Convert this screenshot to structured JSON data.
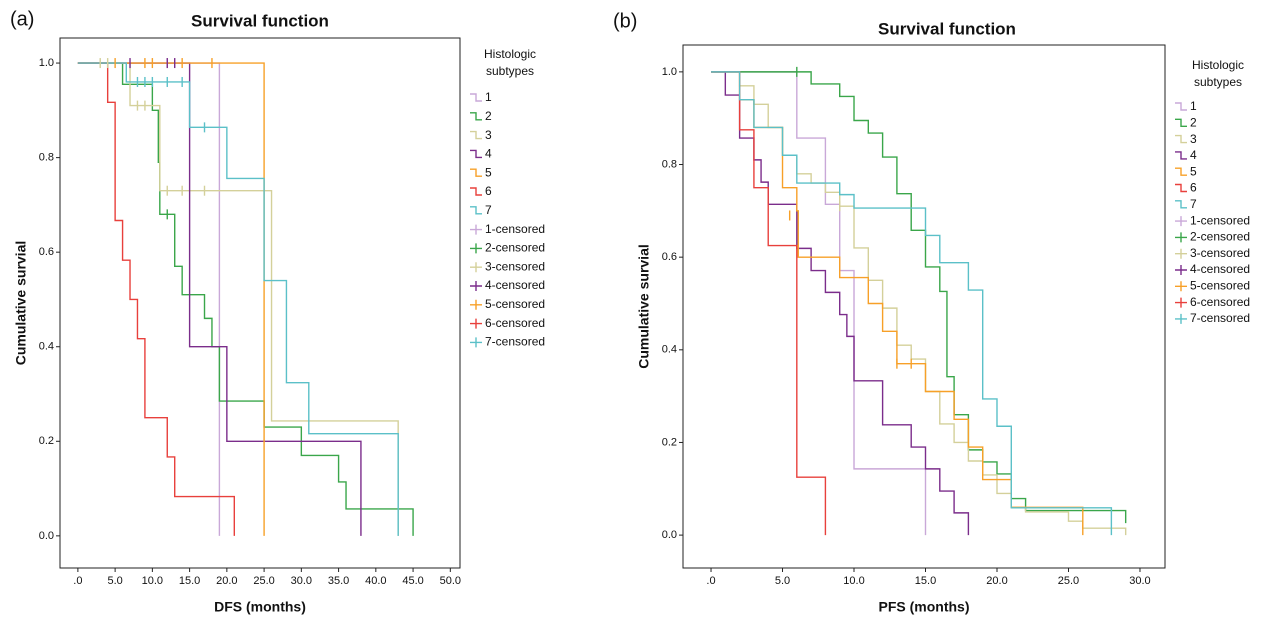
{
  "chart_data": [
    {
      "type": "step",
      "panel_label": "(a)",
      "title": "Survival function",
      "xlabel": "DFS (months)",
      "ylabel": "Cumulative survial",
      "legend_title": [
        "Histologic",
        "subtypes"
      ],
      "xlim": [
        -2.4,
        51.3
      ],
      "ylim": [
        -0.068,
        1.053
      ],
      "xticks": [
        {
          "value": 0,
          "label": ".0"
        },
        {
          "value": 5,
          "label": "5.0"
        },
        {
          "value": 10,
          "label": "10.0"
        },
        {
          "value": 15,
          "label": "15.0"
        },
        {
          "value": 20,
          "label": "20.0"
        },
        {
          "value": 25,
          "label": "25.0"
        },
        {
          "value": 30,
          "label": "30.0"
        },
        {
          "value": 35,
          "label": "35.0"
        },
        {
          "value": 40,
          "label": "40.0"
        },
        {
          "value": 45,
          "label": "45.0"
        },
        {
          "value": 50,
          "label": "50.0"
        }
      ],
      "yticks": [
        {
          "value": 0,
          "label": "0.0"
        },
        {
          "value": 0.2,
          "label": "0.2"
        },
        {
          "value": 0.4,
          "label": "0.4"
        },
        {
          "value": 0.6,
          "label": "0.6"
        },
        {
          "value": 0.8,
          "label": "0.8"
        },
        {
          "value": 1,
          "label": "1.0"
        }
      ],
      "series": [
        {
          "name": "1",
          "type": "step",
          "color": "#c9a8d8",
          "x": [
            0,
            19
          ],
          "values": [
            1,
            0
          ]
        },
        {
          "name": "2",
          "type": "step",
          "color": "#3aa64a",
          "x": [
            0,
            6,
            10,
            10.8,
            11,
            13,
            14,
            17,
            18,
            19,
            25,
            30,
            35,
            36,
            45
          ],
          "values": [
            1,
            0.955,
            0.9,
            0.79,
            0.68,
            0.57,
            0.51,
            0.46,
            0.4,
            0.285,
            0.23,
            0.17,
            0.114,
            0.057,
            0
          ]
        },
        {
          "name": "3",
          "type": "step",
          "color": "#d4d09a",
          "x": [
            0,
            7,
            11,
            26,
            43
          ],
          "values": [
            1,
            0.91,
            0.73,
            0.243,
            0
          ]
        },
        {
          "name": "4",
          "type": "step",
          "color": "#7b2d8b",
          "x": [
            0,
            15,
            20,
            38
          ],
          "values": [
            1,
            0.4,
            0.2,
            0
          ]
        },
        {
          "name": "5",
          "type": "step",
          "color": "#f7a028",
          "x": [
            0,
            25
          ],
          "values": [
            1,
            0
          ]
        },
        {
          "name": "6",
          "type": "step",
          "color": "#e8403c",
          "x": [
            0,
            4,
            5,
            6,
            7,
            8,
            9,
            12,
            13,
            21
          ],
          "values": [
            1,
            0.917,
            0.667,
            0.583,
            0.5,
            0.417,
            0.25,
            0.167,
            0.083,
            0
          ]
        },
        {
          "name": "7",
          "type": "step",
          "color": "#5bc0c8",
          "x": [
            0,
            6.5,
            15,
            20,
            25,
            28,
            31,
            43
          ],
          "values": [
            1,
            0.96,
            0.864,
            0.756,
            0.54,
            0.324,
            0.216,
            0
          ]
        },
        {
          "name": "1-censored",
          "type": "censor",
          "color": "#c9a8d8",
          "x": [
            12
          ],
          "values": [
            1
          ]
        },
        {
          "name": "2-censored",
          "type": "censor",
          "color": "#3aa64a",
          "x": [
            12
          ],
          "values": [
            0.68
          ]
        },
        {
          "name": "3-censored",
          "type": "censor",
          "color": "#d4d09a",
          "x": [
            3,
            4,
            8,
            9,
            12,
            14,
            17
          ],
          "values": [
            1,
            1,
            0.91,
            0.91,
            0.73,
            0.73,
            0.73
          ]
        },
        {
          "name": "4-censored",
          "type": "censor",
          "color": "#7b2d8b",
          "x": [
            7,
            12,
            13
          ],
          "values": [
            1,
            1,
            1
          ]
        },
        {
          "name": "5-censored",
          "type": "censor",
          "color": "#f7a028",
          "x": [
            5,
            9,
            10,
            14,
            18
          ],
          "values": [
            1,
            1,
            1,
            1,
            1
          ]
        },
        {
          "name": "6-censored",
          "type": "censor",
          "color": "#e8403c",
          "x": [],
          "values": []
        },
        {
          "name": "7-censored",
          "type": "censor",
          "color": "#5bc0c8",
          "x": [
            8,
            9,
            10,
            12,
            14,
            17
          ],
          "values": [
            0.96,
            0.96,
            0.96,
            0.96,
            0.96,
            0.864
          ]
        }
      ]
    },
    {
      "type": "step",
      "panel_label": "(b)",
      "title": "Survival function",
      "xlabel": "PFS (months)",
      "ylabel": "Cumulative survial",
      "legend_title": [
        "Histologic",
        "subtypes"
      ],
      "xlim": [
        -1.96,
        31.75
      ],
      "ylim": [
        -0.071,
        1.058
      ],
      "xticks": [
        {
          "value": 0,
          "label": ".0"
        },
        {
          "value": 5,
          "label": "5.0"
        },
        {
          "value": 10,
          "label": "10.0"
        },
        {
          "value": 15,
          "label": "15.0"
        },
        {
          "value": 20,
          "label": "20.0"
        },
        {
          "value": 25,
          "label": "25.0"
        },
        {
          "value": 30,
          "label": "30.0"
        }
      ],
      "yticks": [
        {
          "value": 0,
          "label": "0.0"
        },
        {
          "value": 0.2,
          "label": "0.2"
        },
        {
          "value": 0.4,
          "label": "0.4"
        },
        {
          "value": 0.6,
          "label": "0.6"
        },
        {
          "value": 0.8,
          "label": "0.8"
        },
        {
          "value": 1,
          "label": "1.0"
        }
      ],
      "series": [
        {
          "name": "1",
          "type": "step",
          "color": "#c9a8d8",
          "x": [
            0,
            6,
            8,
            9,
            10,
            15
          ],
          "values": [
            1,
            0.857,
            0.714,
            0.571,
            0.143,
            0
          ]
        },
        {
          "name": "2",
          "type": "step",
          "color": "#3aa64a",
          "x": [
            0,
            7,
            9,
            10,
            11,
            12,
            13,
            14,
            15,
            16,
            16.5,
            17,
            18,
            19,
            20,
            21,
            22,
            29
          ],
          "values": [
            1,
            0.974,
            0.947,
            0.895,
            0.868,
            0.816,
            0.737,
            0.658,
            0.579,
            0.526,
            0.342,
            0.26,
            0.184,
            0.158,
            0.132,
            0.079,
            0.053,
            0.026
          ]
        },
        {
          "name": "3",
          "type": "step",
          "color": "#d4d09a",
          "x": [
            0,
            2,
            3,
            4,
            5,
            6,
            7,
            8,
            9,
            10,
            11,
            12,
            13,
            14,
            15,
            16,
            17,
            18,
            19,
            20,
            21,
            22,
            25,
            26,
            29
          ],
          "values": [
            1,
            0.97,
            0.93,
            0.88,
            0.82,
            0.78,
            0.76,
            0.74,
            0.71,
            0.62,
            0.55,
            0.49,
            0.41,
            0.38,
            0.31,
            0.24,
            0.2,
            0.16,
            0.13,
            0.09,
            0.06,
            0.05,
            0.03,
            0.015,
            0
          ]
        },
        {
          "name": "4",
          "type": "step",
          "color": "#7b2d8b",
          "x": [
            0,
            1,
            2,
            3,
            3.5,
            4,
            6,
            7,
            8,
            9,
            9.5,
            10,
            12,
            14,
            15,
            16,
            17,
            18
          ],
          "values": [
            1,
            0.95,
            0.857,
            0.81,
            0.762,
            0.714,
            0.619,
            0.571,
            0.524,
            0.476,
            0.429,
            0.333,
            0.238,
            0.19,
            0.143,
            0.095,
            0.048,
            0
          ]
        },
        {
          "name": "5",
          "type": "step",
          "color": "#f7a028",
          "x": [
            0,
            2,
            3,
            5,
            6,
            6.1,
            9,
            11,
            12,
            13,
            15,
            17,
            18,
            19,
            21,
            26
          ],
          "values": [
            1,
            0.94,
            0.88,
            0.75,
            0.7,
            0.6,
            0.556,
            0.5,
            0.44,
            0.37,
            0.31,
            0.25,
            0.19,
            0.12,
            0.06,
            0
          ]
        },
        {
          "name": "6",
          "type": "step",
          "color": "#e8403c",
          "x": [
            0,
            2,
            3,
            4,
            6,
            8
          ],
          "values": [
            1,
            0.875,
            0.75,
            0.625,
            0.125,
            0
          ]
        },
        {
          "name": "7",
          "type": "step",
          "color": "#5bc0c8",
          "x": [
            0,
            2,
            3,
            5,
            6,
            9,
            10,
            15,
            16,
            18,
            19,
            20,
            21,
            28
          ],
          "values": [
            1,
            0.94,
            0.88,
            0.82,
            0.76,
            0.735,
            0.706,
            0.647,
            0.588,
            0.529,
            0.294,
            0.235,
            0.059,
            0
          ]
        },
        {
          "name": "1-censored",
          "type": "censor",
          "color": "#c9a8d8",
          "x": [],
          "values": []
        },
        {
          "name": "2-censored",
          "type": "censor",
          "color": "#3aa64a",
          "x": [
            6
          ],
          "values": [
            1
          ]
        },
        {
          "name": "3-censored",
          "type": "censor",
          "color": "#d4d09a",
          "x": [
            9
          ],
          "values": [
            0.71
          ]
        },
        {
          "name": "4-censored",
          "type": "censor",
          "color": "#7b2d8b",
          "x": [],
          "values": []
        },
        {
          "name": "5-censored",
          "type": "censor",
          "color": "#f7a028",
          "x": [
            5.5,
            13,
            14
          ],
          "values": [
            0.69,
            0.37,
            0.37
          ]
        },
        {
          "name": "6-censored",
          "type": "censor",
          "color": "#e8403c",
          "x": [],
          "values": []
        },
        {
          "name": "7-censored",
          "type": "censor",
          "color": "#5bc0c8",
          "x": [],
          "values": []
        }
      ]
    }
  ]
}
